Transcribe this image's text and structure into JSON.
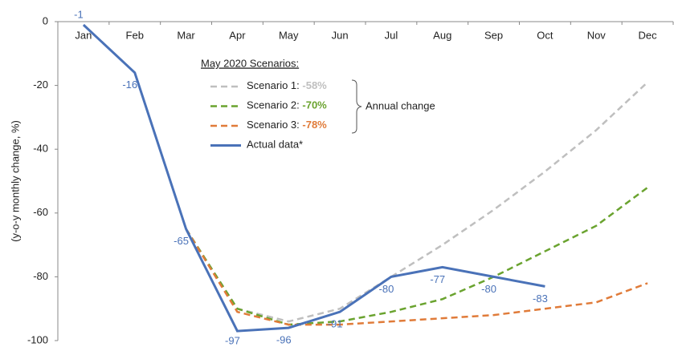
{
  "chart_data": {
    "type": "line",
    "y_label": "(y-o-y monthly change, %)",
    "legend_title": "May 2020 Scenarios:",
    "annotation": "Annual change",
    "categories": [
      "Jan",
      "Feb",
      "Mar",
      "Apr",
      "May",
      "Jun",
      "Jul",
      "Aug",
      "Sep",
      "Oct",
      "Nov",
      "Dec"
    ],
    "ylim": [
      -100,
      0
    ],
    "yticks": [
      0,
      -20,
      -40,
      -60,
      -80,
      -100
    ],
    "series": [
      {
        "name": "Scenario 1:",
        "annual_change": {
          "value": -58,
          "label": "-58%"
        },
        "color": "#bfbfbf",
        "dashed": true,
        "values": [
          null,
          null,
          -65,
          -90,
          -94,
          -90,
          -80,
          -70,
          -59,
          -47,
          -34,
          -19
        ]
      },
      {
        "name": "Scenario 2:",
        "annual_change": {
          "value": -70,
          "label": "-70%"
        },
        "color": "#6aa32f",
        "dashed": true,
        "values": [
          null,
          null,
          -65,
          -90,
          -95,
          -94,
          -91,
          -87,
          -80,
          -72,
          -64,
          -52
        ]
      },
      {
        "name": "Scenario 3:",
        "annual_change": {
          "value": -78,
          "label": "-78%"
        },
        "color": "#e07b39",
        "dashed": true,
        "values": [
          null,
          null,
          -65,
          -91,
          -95,
          -95,
          -94,
          -93,
          -92,
          -90,
          -88,
          -82
        ]
      },
      {
        "name": "Actual data*",
        "color": "#4a72b8",
        "dashed": false,
        "data_labels": true,
        "values": [
          -1,
          -16,
          -65,
          -97,
          -96,
          -91,
          -80,
          -77,
          -80,
          -83,
          null,
          null
        ]
      }
    ]
  }
}
